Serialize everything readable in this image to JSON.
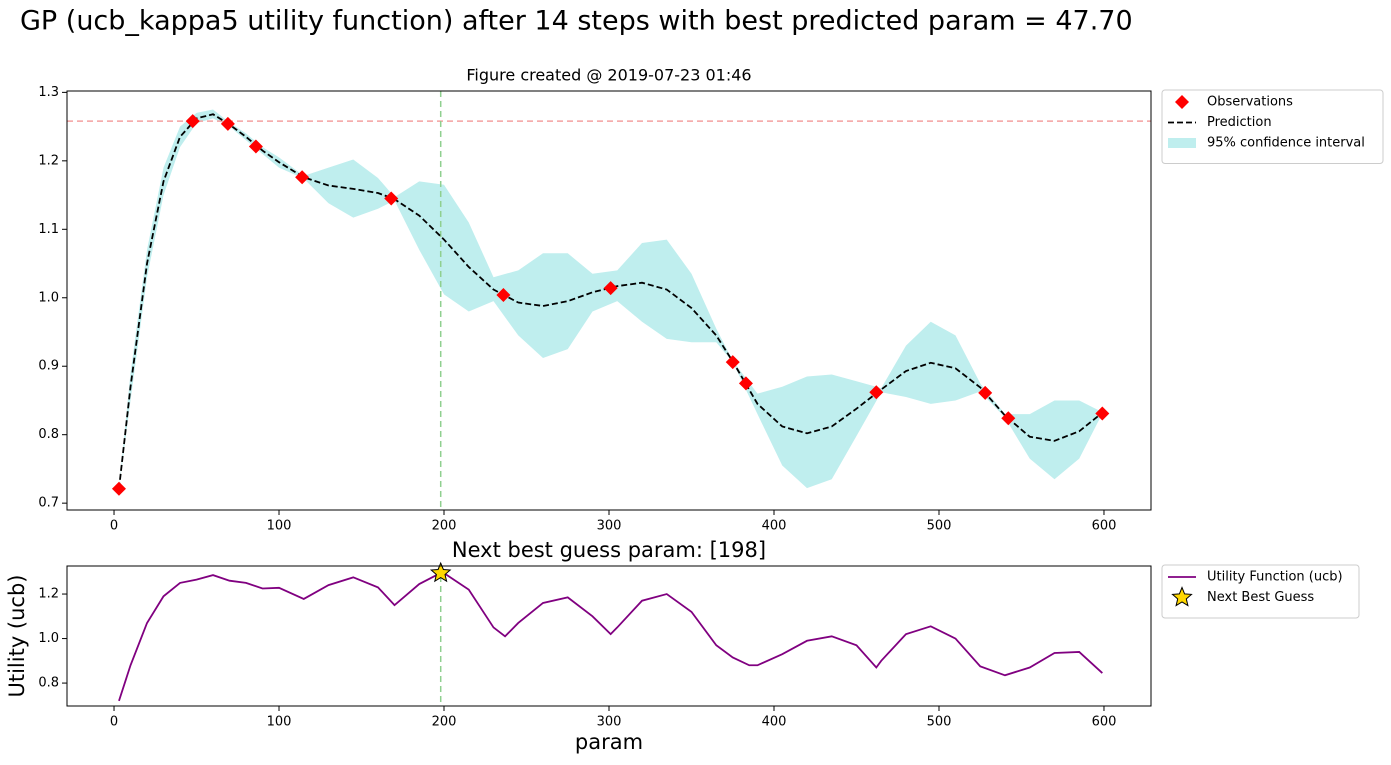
{
  "title": "GP (ucb_kappa5 utility function) after 14 steps with best predicted param = 47.70",
  "chart_data": [
    {
      "type": "line",
      "title": "Figure created @ 2019-07-23 01:46",
      "x": [
        3,
        10,
        20,
        30,
        40,
        50,
        60,
        70,
        80,
        90,
        100,
        115,
        130,
        145,
        160,
        170,
        185,
        200,
        215,
        230,
        245,
        260,
        275,
        290,
        305,
        320,
        335,
        350,
        365,
        375,
        390,
        405,
        420,
        435,
        450,
        465,
        480,
        495,
        510,
        525,
        540,
        555,
        570,
        585,
        599
      ],
      "series": [
        {
          "name": "Observations",
          "color": "#ff0000",
          "marker": "diamond",
          "x": [
            3,
            47.7,
            69,
            86,
            114,
            168,
            236,
            301,
            375,
            383,
            462,
            528,
            542,
            599
          ],
          "values": [
            0.721,
            1.258,
            1.254,
            1.221,
            1.176,
            1.145,
            1.004,
            1.014,
            0.906,
            0.875,
            0.862,
            0.861,
            0.824,
            0.831
          ]
        },
        {
          "name": "Prediction",
          "color": "#000000",
          "dash": true,
          "values": [
            0.721,
            0.87,
            1.05,
            1.17,
            1.235,
            1.262,
            1.268,
            1.253,
            1.235,
            1.215,
            1.198,
            1.176,
            1.164,
            1.159,
            1.153,
            1.144,
            1.12,
            1.085,
            1.045,
            1.012,
            0.993,
            0.988,
            0.995,
            1.008,
            1.017,
            1.022,
            1.012,
            0.985,
            0.945,
            0.907,
            0.845,
            0.812,
            0.802,
            0.812,
            0.838,
            0.866,
            0.893,
            0.905,
            0.897,
            0.869,
            0.828,
            0.797,
            0.791,
            0.805,
            0.832
          ]
        },
        {
          "name": "95% confidence interval",
          "color": "#bfeeee",
          "upper": [
            0.721,
            0.89,
            1.07,
            1.19,
            1.25,
            1.27,
            1.275,
            1.256,
            1.24,
            1.22,
            1.205,
            1.178,
            1.19,
            1.202,
            1.175,
            1.147,
            1.17,
            1.165,
            1.11,
            1.03,
            1.04,
            1.065,
            1.065,
            1.035,
            1.04,
            1.08,
            1.085,
            1.035,
            0.955,
            0.908,
            0.86,
            0.87,
            0.885,
            0.888,
            0.878,
            0.868,
            0.93,
            0.965,
            0.945,
            0.875,
            0.83,
            0.83,
            0.85,
            0.85,
            0.833
          ],
          "lower": [
            0.721,
            0.85,
            1.03,
            1.15,
            1.22,
            1.255,
            1.262,
            1.25,
            1.23,
            1.21,
            1.19,
            1.174,
            1.138,
            1.117,
            1.13,
            1.142,
            1.07,
            1.005,
            0.98,
            0.995,
            0.945,
            0.912,
            0.925,
            0.98,
            0.995,
            0.965,
            0.94,
            0.935,
            0.935,
            0.906,
            0.83,
            0.755,
            0.722,
            0.735,
            0.798,
            0.862,
            0.855,
            0.845,
            0.85,
            0.863,
            0.825,
            0.765,
            0.735,
            0.765,
            0.831
          ]
        }
      ],
      "hline": {
        "value": 1.258,
        "color": "#f4a0a0"
      },
      "vline": {
        "value": 198,
        "color": "#8fd08f"
      },
      "xlim": [
        -28.5,
        628.5
      ],
      "ylim": [
        0.69,
        1.302
      ],
      "xticks": [
        0,
        100,
        200,
        300,
        400,
        500,
        600
      ],
      "yticks": [
        0.7,
        0.8,
        0.9,
        {
          "value": 1,
          "label": "1.0"
        },
        1.1,
        1.2,
        1.3
      ],
      "legend": "outside upper right"
    },
    {
      "type": "line",
      "title": "Next best guess param: [198]",
      "x_label": "param",
      "y_label": "Utility (ucb)",
      "x": [
        3,
        10,
        20,
        30,
        40,
        50,
        60,
        70,
        80,
        90,
        100,
        115,
        130,
        145,
        160,
        170,
        185,
        198,
        200,
        215,
        230,
        237,
        245,
        260,
        275,
        290,
        301,
        305,
        320,
        335,
        350,
        365,
        375,
        385,
        390,
        405,
        420,
        435,
        450,
        462,
        465,
        480,
        495,
        510,
        525,
        540,
        555,
        570,
        585,
        599
      ],
      "series": [
        {
          "name": "Utility Function (ucb)",
          "color": "#800080",
          "values": [
            0.72,
            0.88,
            1.07,
            1.19,
            1.25,
            1.265,
            1.285,
            1.26,
            1.25,
            1.225,
            1.228,
            1.178,
            1.24,
            1.275,
            1.23,
            1.15,
            1.245,
            1.295,
            1.294,
            1.22,
            1.05,
            1.01,
            1.07,
            1.16,
            1.185,
            1.1,
            1.02,
            1.05,
            1.17,
            1.2,
            1.12,
            0.97,
            0.915,
            0.88,
            0.88,
            0.93,
            0.99,
            1.01,
            0.97,
            0.87,
            0.9,
            1.02,
            1.055,
            1.0,
            0.875,
            0.835,
            0.87,
            0.935,
            0.94,
            0.845
          ]
        },
        {
          "name": "Next Best Guess",
          "color": "#ffd700",
          "marker": "star",
          "x": [
            198
          ],
          "values": [
            1.294
          ]
        }
      ],
      "vline": {
        "value": 198,
        "color": "#8fd08f"
      },
      "xlim": [
        -28.5,
        628.5
      ],
      "ylim": [
        0.697,
        1.326
      ],
      "xticks": [
        0,
        100,
        200,
        300,
        400,
        500,
        600
      ],
      "yticks": [
        0.8,
        {
          "value": 1,
          "label": "1.0"
        },
        1.2
      ],
      "legend": "outside upper right"
    }
  ]
}
